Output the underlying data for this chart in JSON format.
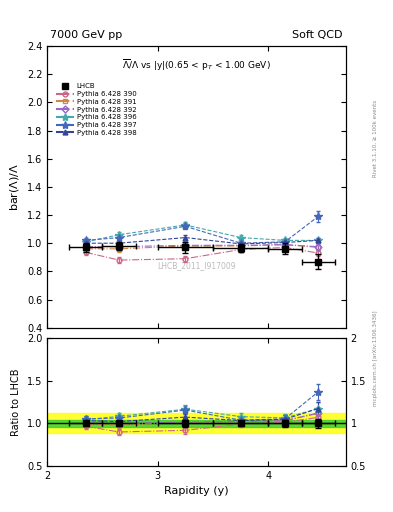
{
  "title_left": "7000 GeV pp",
  "title_right": "Soft QCD",
  "plot_title": "$\\overline{\\Lambda}/\\Lambda$ vs |y|(0.65 < p$_T$ < 1.00 GeV)",
  "ylabel_main": "bar($\\Lambda$)/$\\Lambda$",
  "ylabel_ratio": "Ratio to LHCB",
  "xlabel": "Rapidity (y)",
  "watermark": "LHCB_2011_I917009",
  "rivet_text": "Rivet 3.1.10, ≥ 100k events",
  "arxiv_text": "mcplots.cern.ch [arXiv:1306.3436]",
  "ylim_main": [
    0.4,
    2.4
  ],
  "ylim_ratio": [
    0.5,
    2.0
  ],
  "xlim": [
    2.0,
    4.7
  ],
  "x_ticks": [
    2,
    3,
    4
  ],
  "lhcb_x": [
    2.35,
    2.65,
    3.25,
    3.75,
    4.15,
    4.45
  ],
  "lhcb_y": [
    0.97,
    0.98,
    0.97,
    0.965,
    0.96,
    0.87
  ],
  "lhcb_yerr": [
    0.03,
    0.03,
    0.04,
    0.03,
    0.04,
    0.05
  ],
  "lhcb_xerr": [
    0.15,
    0.15,
    0.25,
    0.25,
    0.15,
    0.15
  ],
  "series": [
    {
      "label": "Pythia 6.428 390",
      "color": "#cc6688",
      "marker": "o",
      "linestyle": "-.",
      "x": [
        2.35,
        2.65,
        3.25,
        3.75,
        4.15,
        4.45
      ],
      "y": [
        0.935,
        0.88,
        0.89,
        0.955,
        0.97,
        0.93
      ],
      "yerr": [
        0.02,
        0.02,
        0.02,
        0.02,
        0.02,
        0.02
      ]
    },
    {
      "label": "Pythia 6.428 391",
      "color": "#cc8844",
      "marker": "s",
      "linestyle": "-.",
      "x": [
        2.35,
        2.65,
        3.25,
        3.75,
        4.15,
        4.45
      ],
      "y": [
        0.96,
        0.96,
        0.98,
        0.98,
        0.99,
        0.97
      ],
      "yerr": [
        0.02,
        0.02,
        0.02,
        0.02,
        0.02,
        0.02
      ]
    },
    {
      "label": "Pythia 6.428 392",
      "color": "#9966cc",
      "marker": "D",
      "linestyle": "-.",
      "x": [
        2.35,
        2.65,
        3.25,
        3.75,
        4.15,
        4.45
      ],
      "y": [
        0.975,
        0.975,
        0.985,
        0.985,
        0.99,
        0.975
      ],
      "yerr": [
        0.02,
        0.02,
        0.02,
        0.02,
        0.02,
        0.02
      ]
    },
    {
      "label": "Pythia 6.428 396",
      "color": "#44aaaa",
      "marker": "*",
      "linestyle": "--",
      "x": [
        2.35,
        2.65,
        3.25,
        3.75,
        4.15,
        4.45
      ],
      "y": [
        1.01,
        1.06,
        1.13,
        1.04,
        1.02,
        1.02
      ],
      "yerr": [
        0.02,
        0.02,
        0.02,
        0.02,
        0.02,
        0.02
      ]
    },
    {
      "label": "Pythia 6.428 397",
      "color": "#4466bb",
      "marker": "*",
      "linestyle": "--",
      "x": [
        2.35,
        2.65,
        3.25,
        3.75,
        4.15,
        4.45
      ],
      "y": [
        1.02,
        1.04,
        1.12,
        1.0,
        1.01,
        1.19
      ],
      "yerr": [
        0.02,
        0.02,
        0.02,
        0.02,
        0.02,
        0.04
      ]
    },
    {
      "label": "Pythia 6.428 398",
      "color": "#334499",
      "marker": "^",
      "linestyle": "--",
      "x": [
        2.35,
        2.65,
        3.25,
        3.75,
        4.15,
        4.45
      ],
      "y": [
        1.0,
        1.0,
        1.04,
        0.995,
        1.005,
        1.02
      ],
      "yerr": [
        0.02,
        0.02,
        0.02,
        0.02,
        0.02,
        0.02
      ]
    }
  ],
  "ratio_green_band": [
    0.96,
    1.04
  ],
  "ratio_yellow_band": [
    0.88,
    1.12
  ]
}
